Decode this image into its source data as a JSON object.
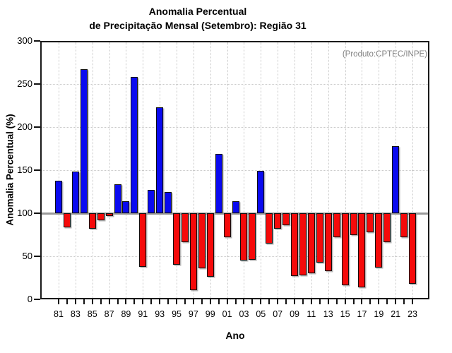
{
  "title": {
    "line1": "Anomalia Percentual",
    "line2": "de Precipitação Mensal (Setembro): Região 31"
  },
  "annotation": "(Produto:CPTEC/INPE)",
  "chart_data": {
    "type": "bar",
    "title": "Anomalia Percentual de Precipitação Mensal (Setembro): Região 31",
    "xlabel": "Ano",
    "ylabel": "Anomalia Percentual (%)",
    "ylim": [
      0,
      300
    ],
    "yticks": [
      0,
      50,
      100,
      150,
      200,
      250,
      300
    ],
    "ytick_labels": [
      "0",
      "50",
      "100",
      "150",
      "200",
      "250",
      "300"
    ],
    "baseline": 100,
    "grid": true,
    "legend": "none",
    "x_tick_labels": [
      "81",
      "83",
      "85",
      "87",
      "89",
      "91",
      "93",
      "95",
      "97",
      "99",
      "01",
      "03",
      "05",
      "07",
      "09",
      "11",
      "13",
      "15",
      "17",
      "19",
      "21",
      "23"
    ],
    "categories": [
      "81",
      "82",
      "83",
      "84",
      "85",
      "86",
      "87",
      "88",
      "89",
      "90",
      "91",
      "92",
      "93",
      "94",
      "95",
      "96",
      "97",
      "98",
      "99",
      "00",
      "01",
      "02",
      "03",
      "04",
      "05",
      "06",
      "07",
      "08",
      "09",
      "10",
      "11",
      "12",
      "13",
      "14",
      "15",
      "16",
      "17",
      "18",
      "19",
      "20",
      "21",
      "22",
      "23"
    ],
    "values": [
      138,
      84,
      148,
      267,
      82,
      92,
      97,
      134,
      114,
      258,
      38,
      127,
      223,
      125,
      40,
      66,
      11,
      36,
      26,
      169,
      72,
      114,
      45,
      46,
      149,
      65,
      82,
      86,
      27,
      28,
      30,
      43,
      33,
      72,
      16,
      75,
      14,
      78,
      37,
      66,
      178,
      72,
      18
    ],
    "colors": {
      "above_baseline": "#0a0af0",
      "below_baseline": "#f50a0a",
      "baseline_line": "#999999",
      "grid_line": "#c9c9c9"
    }
  }
}
